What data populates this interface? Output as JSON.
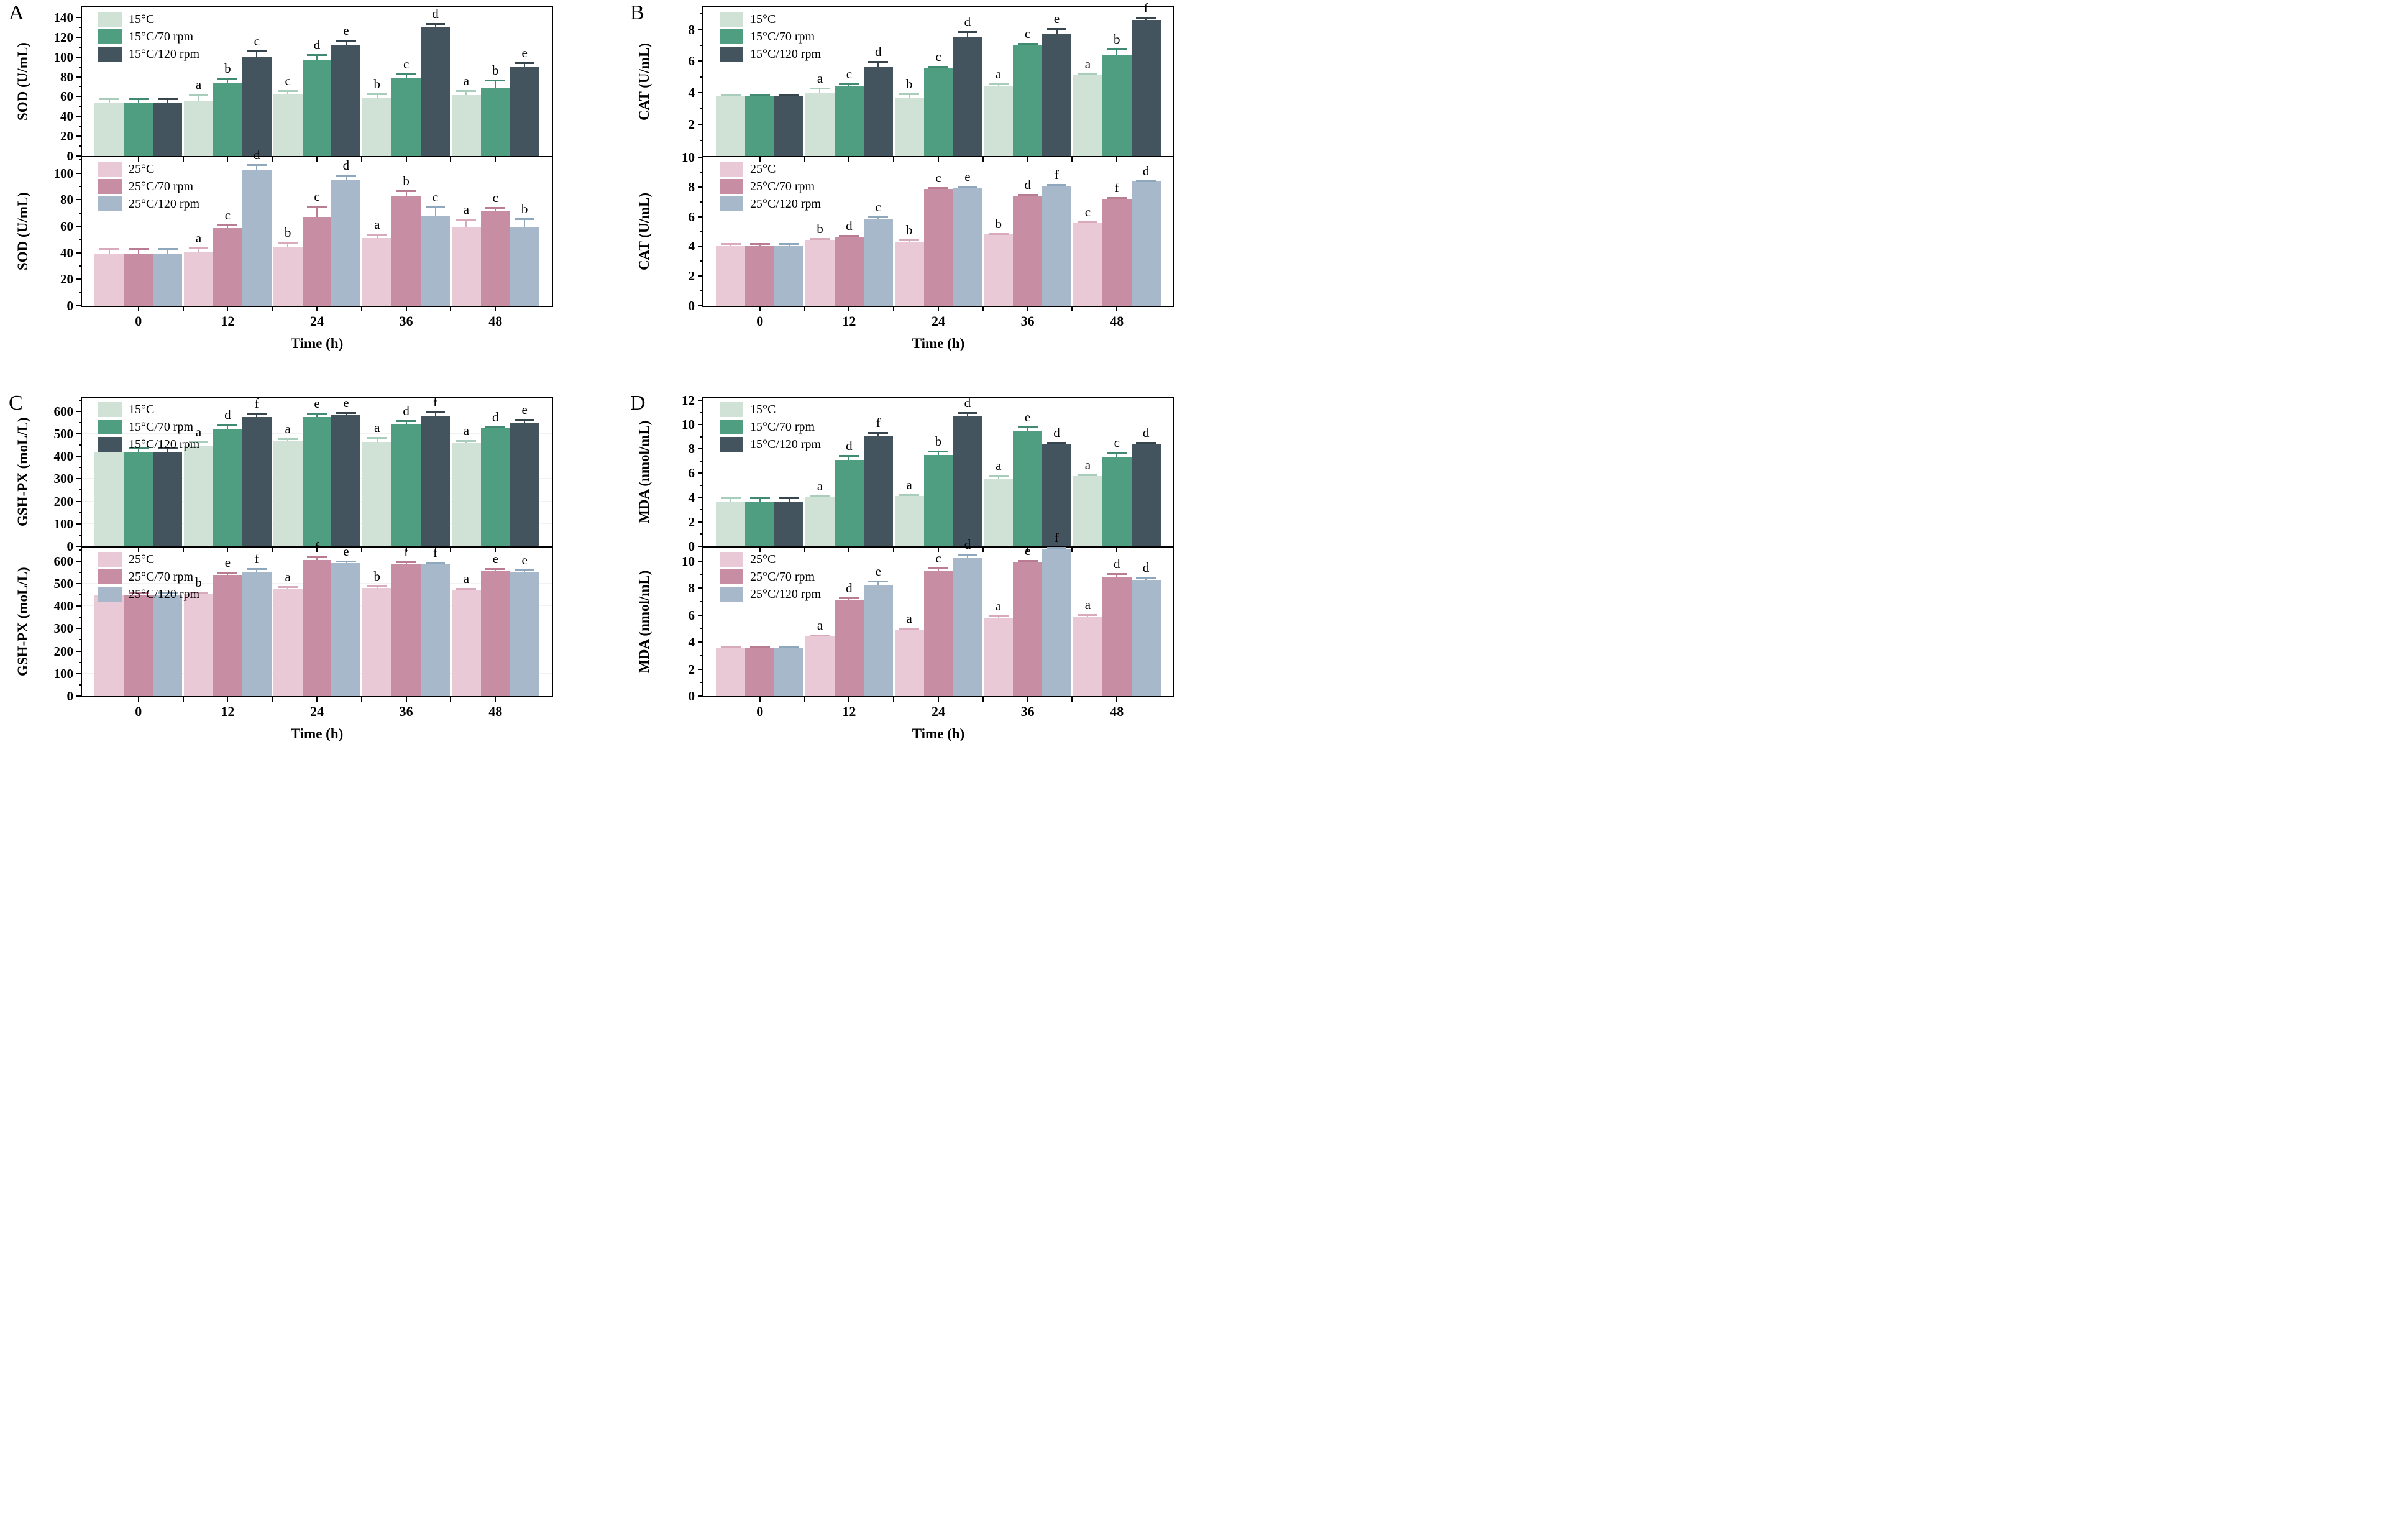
{
  "figure_title": "",
  "xlabel": "Time (h)",
  "categories": [
    "0",
    "12",
    "24",
    "36",
    "48"
  ],
  "palette": {
    "cold_colors": [
      "#cfe2d5",
      "#4f9e82",
      "#44545f"
    ],
    "cold_error_colors": [
      "#a9cdbb",
      "#3f8a70",
      "#37454e"
    ],
    "warm_colors": [
      "#e9c9d5",
      "#c78ea3",
      "#a6b8ca"
    ],
    "warm_error_colors": [
      "#d9a9bc",
      "#b97c93",
      "#8ea7bd"
    ],
    "axis_color": "#000000",
    "grid_color": "#f2f2f2"
  },
  "legend_cold": [
    "15°C",
    "15°C/70 rpm",
    "15°C/120 rpm"
  ],
  "legend_warm": [
    "25°C",
    "25°C/70 rpm",
    "25°C/120 rpm"
  ],
  "layout": {
    "panels": [
      {
        "letter": "A",
        "charts": [
          0,
          1
        ],
        "xlabel": "Time (h)"
      },
      {
        "letter": "B",
        "charts": [
          2,
          3
        ],
        "xlabel": "Time (h)"
      },
      {
        "letter": "C",
        "charts": [
          4,
          5
        ],
        "xlabel": "Time (h)"
      },
      {
        "letter": "D",
        "charts": [
          6,
          7
        ],
        "xlabel": "Time (h)"
      }
    ]
  },
  "chart_data": [
    {
      "type": "bar",
      "panel": "A",
      "position": "top",
      "ylabel": "SOD (U/mL)",
      "categories": [
        "0",
        "12",
        "24",
        "36",
        "48"
      ],
      "ylim": [
        0,
        150
      ],
      "yticks": [
        0,
        20,
        40,
        60,
        80,
        100,
        120,
        140
      ],
      "minor_step": 10,
      "grid": false,
      "legend": [
        "15°C",
        "15°C/70 rpm",
        "15°C/120 rpm"
      ],
      "legend_position": "top-left",
      "series": [
        {
          "name": "15°C",
          "color": "#cfe2d5",
          "error_color": "#a9cdbb",
          "values": [
            54,
            56,
            62.5,
            59,
            61.5
          ],
          "errors": [
            3.5,
            6,
            3.5,
            4,
            4.5
          ],
          "letters": [
            "",
            "a",
            "c",
            "b",
            "a"
          ]
        },
        {
          "name": "15°C/70 rpm",
          "color": "#4f9e82",
          "error_color": "#3f8a70",
          "values": [
            54,
            73.5,
            97,
            79,
            68.5
          ],
          "errors": [
            3.5,
            5,
            5,
            4,
            8
          ],
          "letters": [
            "",
            "b",
            "d",
            "c",
            "b"
          ]
        },
        {
          "name": "15°C/120 rpm",
          "color": "#44545f",
          "error_color": "#37454e",
          "values": [
            54,
            100,
            112.5,
            130,
            90
          ],
          "errors": [
            3.5,
            6,
            4,
            4,
            4
          ],
          "letters": [
            "",
            "c",
            "e",
            "d",
            "e"
          ]
        }
      ]
    },
    {
      "type": "bar",
      "panel": "A",
      "position": "bottom",
      "ylabel": "SOD (U/mL)",
      "categories": [
        "0",
        "12",
        "24",
        "36",
        "48"
      ],
      "ylim": [
        0,
        112
      ],
      "yticks": [
        0,
        20,
        40,
        60,
        80,
        100
      ],
      "minor_step": 10,
      "grid": false,
      "legend": [
        "25°C",
        "25°C/70 rpm",
        "25°C/120 rpm"
      ],
      "legend_position": "top-left",
      "series": [
        {
          "name": "25°C",
          "color": "#e9c9d5",
          "error_color": "#d9a9bc",
          "values": [
            39,
            41,
            44,
            51,
            59
          ],
          "errors": [
            4,
            2.5,
            4,
            3,
            6
          ],
          "letters": [
            "",
            "a",
            "b",
            "a",
            "a"
          ]
        },
        {
          "name": "25°C/70 rpm",
          "color": "#c78ea3",
          "error_color": "#b97c93",
          "values": [
            39,
            58.5,
            67,
            82.5,
            71.5
          ],
          "errors": [
            4,
            2.5,
            8,
            4,
            2.5
          ],
          "letters": [
            "",
            "c",
            "c",
            "b",
            "c"
          ]
        },
        {
          "name": "25°C/120 rpm",
          "color": "#a6b8ca",
          "error_color": "#8ea7bd",
          "values": [
            39,
            102.5,
            95,
            67.5,
            59.5
          ],
          "errors": [
            4,
            4,
            3.5,
            7,
            6
          ],
          "letters": [
            "",
            "d",
            "d",
            "c",
            "b"
          ]
        }
      ]
    },
    {
      "type": "bar",
      "panel": "B",
      "position": "top",
      "ylabel": "CAT (U/mL)",
      "categories": [
        "0",
        "12",
        "24",
        "36",
        "48"
      ],
      "ylim": [
        0,
        9.4
      ],
      "yticks": [
        2,
        4,
        6,
        8
      ],
      "minor_step": 1,
      "grid": false,
      "legend": [
        "15°C",
        "15°C/70 rpm",
        "15°C/120 rpm"
      ],
      "legend_position": "top-left",
      "series": [
        {
          "name": "15°C",
          "color": "#cfe2d5",
          "error_color": "#a9cdbb",
          "values": [
            3.8,
            4.02,
            3.65,
            4.45,
            5.1
          ],
          "errors": [
            0.1,
            0.28,
            0.28,
            0.12,
            0.1
          ],
          "letters": [
            "",
            "a",
            "b",
            "a",
            "a"
          ]
        },
        {
          "name": "15°C/70 rpm",
          "color": "#4f9e82",
          "error_color": "#3f8a70",
          "values": [
            3.8,
            4.42,
            5.55,
            7.0,
            6.4
          ],
          "errors": [
            0.1,
            0.15,
            0.12,
            0.1,
            0.35
          ],
          "letters": [
            "",
            "c",
            "c",
            "c",
            "b"
          ]
        },
        {
          "name": "15°C/120 rpm",
          "color": "#44545f",
          "error_color": "#37454e",
          "values": [
            3.78,
            5.65,
            7.55,
            7.72,
            8.6
          ],
          "errors": [
            0.1,
            0.33,
            0.3,
            0.35,
            0.15
          ],
          "letters": [
            "",
            "d",
            "d",
            "e",
            "f"
          ]
        }
      ]
    },
    {
      "type": "bar",
      "panel": "B",
      "position": "bottom",
      "ylabel": "CAT (U/mL)",
      "categories": [
        "0",
        "12",
        "24",
        "36",
        "48"
      ],
      "ylim": [
        0,
        10
      ],
      "yticks": [
        0,
        2,
        4,
        6,
        8,
        10
      ],
      "minor_step": 1,
      "grid": false,
      "legend": [
        "25°C",
        "25°C/70 rpm",
        "25°C/120 rpm"
      ],
      "legend_position": "top-left",
      "series": [
        {
          "name": "25°C",
          "color": "#e9c9d5",
          "error_color": "#d9a9bc",
          "values": [
            4.05,
            4.45,
            4.3,
            4.8,
            5.55
          ],
          "errors": [
            0.15,
            0.08,
            0.15,
            0.07,
            0.1
          ],
          "letters": [
            "",
            "b",
            "b",
            "b",
            "c"
          ]
        },
        {
          "name": "25°C/70 rpm",
          "color": "#c78ea3",
          "error_color": "#b97c93",
          "values": [
            4.05,
            4.65,
            7.85,
            7.4,
            7.2
          ],
          "errors": [
            0.15,
            0.08,
            0.1,
            0.07,
            0.1
          ],
          "letters": [
            "",
            "d",
            "c",
            "d",
            "f"
          ]
        },
        {
          "name": "25°C/120 rpm",
          "color": "#a6b8ca",
          "error_color": "#8ea7bd",
          "values": [
            4.03,
            5.85,
            7.95,
            8.05,
            8.35
          ],
          "errors": [
            0.15,
            0.13,
            0.07,
            0.1,
            0.08
          ],
          "letters": [
            "",
            "c",
            "e",
            "f",
            "d"
          ]
        }
      ]
    },
    {
      "type": "bar",
      "panel": "C",
      "position": "top",
      "ylabel": "GSH-PX (moL/L)",
      "categories": [
        "0",
        "12",
        "24",
        "36",
        "48"
      ],
      "ylim": [
        0,
        660
      ],
      "yticks": [
        0,
        100,
        200,
        300,
        400,
        500,
        600
      ],
      "minor_step": 50,
      "grid": true,
      "legend": [
        "15°C",
        "15°C/70 rpm",
        "15°C/120 rpm"
      ],
      "legend_position": "top-left",
      "series": [
        {
          "name": "15°C",
          "color": "#cfe2d5",
          "error_color": "#a9cdbb",
          "values": [
            420,
            445,
            468,
            465,
            462
          ],
          "errors": [
            18,
            20,
            10,
            18,
            8
          ],
          "letters": [
            "",
            "a",
            "a",
            "a",
            "a"
          ]
        },
        {
          "name": "15°C/70 rpm",
          "color": "#4f9e82",
          "error_color": "#3f8a70",
          "values": [
            420,
            520,
            575,
            545,
            525
          ],
          "errors": [
            18,
            22,
            15,
            12,
            6
          ],
          "letters": [
            "",
            "d",
            "e",
            "d",
            "d"
          ]
        },
        {
          "name": "15°C/120 rpm",
          "color": "#44545f",
          "error_color": "#37454e",
          "values": [
            420,
            575,
            585,
            578,
            548
          ],
          "errors": [
            20,
            15,
            8,
            18,
            15
          ],
          "letters": [
            "",
            "f",
            "e",
            "f",
            "e"
          ]
        }
      ]
    },
    {
      "type": "bar",
      "panel": "C",
      "position": "bottom",
      "ylabel": "GSH-PX (moL/L)",
      "categories": [
        "0",
        "12",
        "24",
        "36",
        "48"
      ],
      "ylim": [
        0,
        660
      ],
      "yticks": [
        0,
        100,
        200,
        300,
        400,
        500,
        600
      ],
      "minor_step": 50,
      "grid": true,
      "legend": [
        "25°C",
        "25°C/70 rpm",
        "25°C/120 rpm"
      ],
      "legend_position": "top-left",
      "series": [
        {
          "name": "25°C",
          "color": "#e9c9d5",
          "error_color": "#d9a9bc",
          "values": [
            450,
            452,
            477,
            480,
            470
          ],
          "errors": [
            10,
            10,
            8,
            10,
            8
          ],
          "letters": [
            "",
            "b",
            "a",
            "b",
            "a"
          ]
        },
        {
          "name": "25°C/70 rpm",
          "color": "#c78ea3",
          "error_color": "#b97c93",
          "values": [
            450,
            538,
            605,
            588,
            555
          ],
          "errors": [
            8,
            12,
            14,
            8,
            10
          ],
          "letters": [
            "",
            "e",
            "f",
            "f",
            "e"
          ]
        },
        {
          "name": "25°C/120 rpm",
          "color": "#a6b8ca",
          "error_color": "#8ea7bd",
          "values": [
            450,
            553,
            592,
            585,
            552
          ],
          "errors": [
            8,
            14,
            8,
            8,
            8
          ],
          "letters": [
            "",
            "f",
            "e",
            "f",
            "e"
          ]
        }
      ]
    },
    {
      "type": "bar",
      "panel": "D",
      "position": "top",
      "ylabel": "MDA (nmol/mL)",
      "categories": [
        "0",
        "12",
        "24",
        "36",
        "48"
      ],
      "ylim": [
        0,
        12.2
      ],
      "yticks": [
        0,
        2,
        4,
        6,
        8,
        10,
        12
      ],
      "minor_step": 1,
      "grid": false,
      "legend": [
        "15°C",
        "15°C/70 rpm",
        "15°C/120 rpm"
      ],
      "legend_position": "top-left",
      "series": [
        {
          "name": "15°C",
          "color": "#cfe2d5",
          "error_color": "#a9cdbb",
          "values": [
            3.7,
            4.05,
            4.15,
            5.55,
            5.75
          ],
          "errors": [
            0.3,
            0.1,
            0.08,
            0.25,
            0.12
          ],
          "letters": [
            "",
            "a",
            "a",
            "a",
            "a"
          ]
        },
        {
          "name": "15°C/70 rpm",
          "color": "#4f9e82",
          "error_color": "#3f8a70",
          "values": [
            3.7,
            7.1,
            7.5,
            9.5,
            7.35
          ],
          "errors": [
            0.3,
            0.35,
            0.3,
            0.3,
            0.35
          ],
          "letters": [
            "",
            "d",
            "b",
            "e",
            "c"
          ]
        },
        {
          "name": "15°C/120 rpm",
          "color": "#44545f",
          "error_color": "#37454e",
          "values": [
            3.7,
            9.1,
            10.65,
            8.4,
            8.35
          ],
          "errors": [
            0.3,
            0.25,
            0.35,
            0.15,
            0.2
          ],
          "letters": [
            "",
            "f",
            "d",
            "d",
            "d"
          ]
        }
      ]
    },
    {
      "type": "bar",
      "panel": "D",
      "position": "bottom",
      "ylabel": "MDA (nmol/mL)",
      "categories": [
        "0",
        "12",
        "24",
        "36",
        "48"
      ],
      "ylim": [
        0,
        11
      ],
      "yticks": [
        0,
        2,
        4,
        6,
        8,
        10
      ],
      "minor_step": 1,
      "grid": false,
      "legend": [
        "25°C",
        "25°C/70 rpm",
        "25°C/120 rpm"
      ],
      "legend_position": "top-left",
      "series": [
        {
          "name": "25°C",
          "color": "#e9c9d5",
          "error_color": "#d9a9bc",
          "values": [
            3.55,
            4.4,
            4.9,
            5.8,
            5.9
          ],
          "errors": [
            0.15,
            0.12,
            0.1,
            0.12,
            0.12
          ],
          "letters": [
            "",
            "a",
            "a",
            "a",
            "a"
          ]
        },
        {
          "name": "25°C/70 rpm",
          "color": "#c78ea3",
          "error_color": "#b97c93",
          "values": [
            3.55,
            7.1,
            9.3,
            9.95,
            8.8
          ],
          "errors": [
            0.15,
            0.15,
            0.2,
            0.1,
            0.25
          ],
          "letters": [
            "",
            "d",
            "c",
            "e",
            "d"
          ]
        },
        {
          "name": "25°C/120 rpm",
          "color": "#a6b8ca",
          "error_color": "#8ea7bd",
          "values": [
            3.55,
            8.25,
            10.2,
            10.85,
            8.6
          ],
          "errors": [
            0.15,
            0.25,
            0.3,
            0.15,
            0.2
          ],
          "letters": [
            "",
            "e",
            "d",
            "f",
            "d"
          ]
        }
      ]
    }
  ]
}
